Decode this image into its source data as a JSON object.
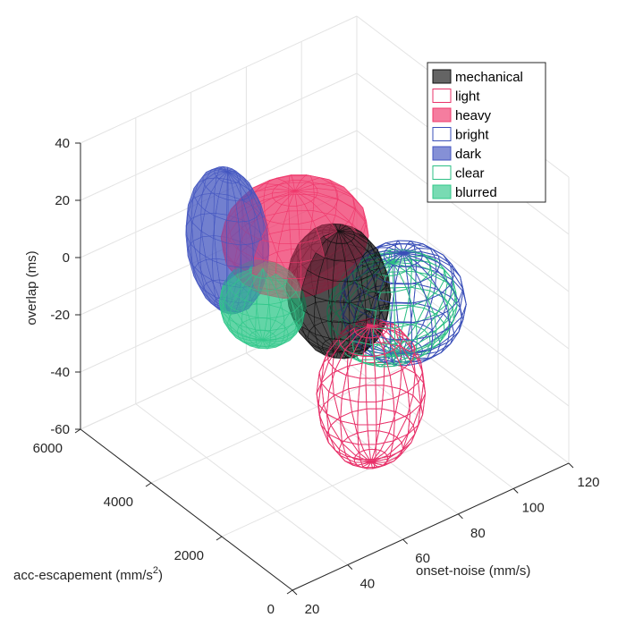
{
  "chart_data": {
    "type": "3d-ellipsoid",
    "xlabel": "onset-noise (mm/s)",
    "ylabel_main": "acc-escapement (mm/s",
    "ylabel_sup": "2",
    "ylabel_end": ")",
    "zlabel": "overlap (ms)",
    "xlim": [
      20,
      120
    ],
    "ylim": [
      0,
      6000
    ],
    "zlim": [
      -60,
      40
    ],
    "xticks": [
      "20",
      "40",
      "60",
      "80",
      "100",
      "120"
    ],
    "yticks": [
      "0",
      "2000",
      "4000",
      "6000"
    ],
    "zticks": [
      "-60",
      "-40",
      "-20",
      "0",
      "20",
      "40"
    ],
    "grid": true,
    "legend_position": "top-right",
    "series": [
      {
        "name": "mechanical",
        "style": "filled",
        "color": "#111111",
        "center": [
          75,
          3000,
          -8
        ],
        "radii": [
          14,
          1000,
          21
        ]
      },
      {
        "name": "light",
        "style": "wire",
        "color": "#e8336a",
        "center": [
          74,
          2000,
          -34
        ],
        "radii": [
          16,
          900,
          24
        ]
      },
      {
        "name": "heavy",
        "style": "filled",
        "color": "#f0386b",
        "center": [
          72,
          4000,
          3
        ],
        "radii": [
          22,
          1200,
          16
        ]
      },
      {
        "name": "bright",
        "style": "wire",
        "color": "#3a4fb8",
        "center": [
          92,
          2500,
          -15
        ],
        "radii": [
          18,
          1100,
          17.5
        ]
      },
      {
        "name": "dark",
        "style": "filled",
        "color": "#4355c0",
        "center": [
          54,
          4500,
          5
        ],
        "radii": [
          10,
          900,
          24
        ]
      },
      {
        "name": "clear",
        "style": "wire",
        "color": "#2dbf85",
        "center": [
          88,
          2500,
          -15
        ],
        "radii": [
          20,
          1000,
          16
        ]
      },
      {
        "name": "blurred",
        "style": "filled",
        "color": "#30c88a",
        "center": [
          54,
          3500,
          -8
        ],
        "radii": [
          12,
          800,
          12.5
        ]
      }
    ]
  }
}
